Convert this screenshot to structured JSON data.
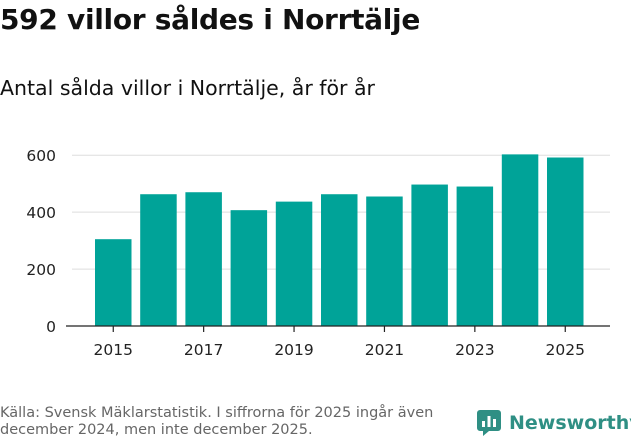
{
  "chart_data": {
    "type": "bar",
    "title": "592 villor såldes i Norrtälje",
    "subtitle": "Antal sålda villor i Norrtälje, år för år",
    "xlabel": "",
    "ylabel": "",
    "categories": [
      "2015",
      "2016",
      "2017",
      "2018",
      "2019",
      "2020",
      "2021",
      "2022",
      "2023",
      "2024",
      "2025"
    ],
    "values": [
      305,
      463,
      470,
      407,
      437,
      463,
      455,
      497,
      490,
      603,
      592
    ],
    "ylim": [
      0,
      650
    ],
    "yticks": [
      0,
      200,
      400,
      600
    ],
    "yticklabels": [
      "0",
      "200",
      "400",
      "600"
    ],
    "xticklabels": [
      "2015",
      "2017",
      "2019",
      "2021",
      "2023",
      "2025"
    ],
    "grid": true,
    "bar_color": "#00a398"
  },
  "footer": {
    "source": "Källa: Svensk Mäklarstatistik. I siffrorna för 2025 ingår även december 2024, men inte december 2025."
  },
  "brand": {
    "name": "Newsworthy",
    "icon": "newsworthy-logo-icon",
    "color": "#2f8f84"
  }
}
